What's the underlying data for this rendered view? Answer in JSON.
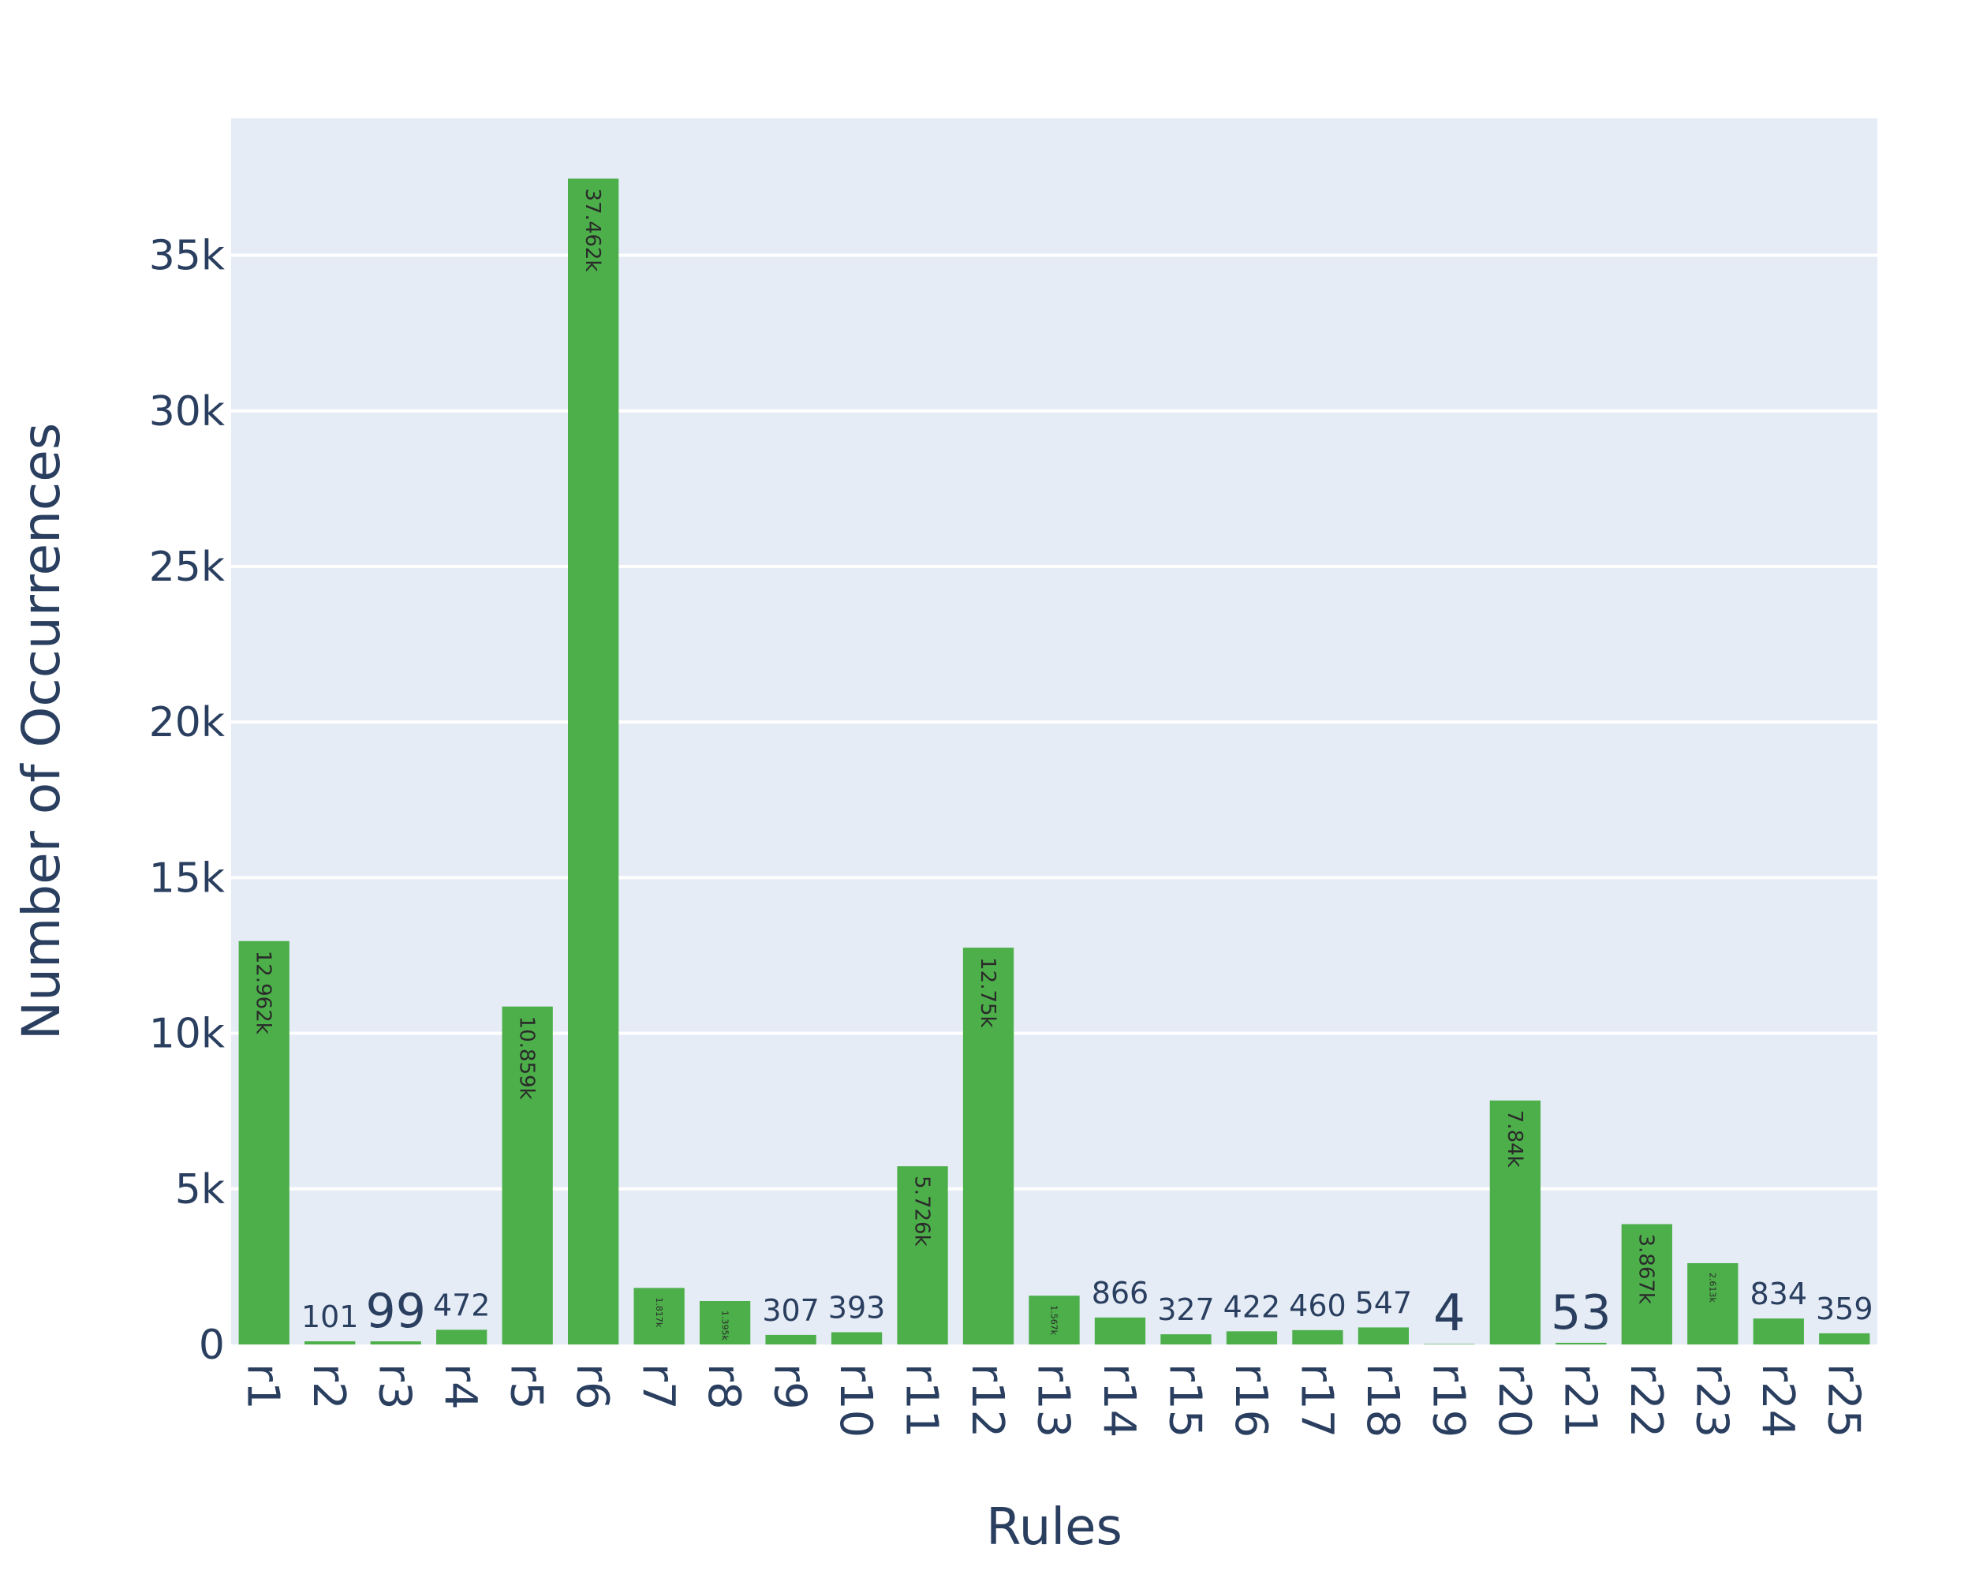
{
  "chart_data": {
    "type": "bar",
    "title": "",
    "xlabel": "Rules",
    "ylabel": "Number of Occurrences",
    "ylim": [
      0,
      39400
    ],
    "yticks": [
      0,
      5000,
      10000,
      15000,
      20000,
      25000,
      30000,
      35000
    ],
    "ytick_labels": [
      "0",
      "5k",
      "10k",
      "15k",
      "20k",
      "25k",
      "30k",
      "35k"
    ],
    "grid": true,
    "legend": "none",
    "categories": [
      "r1",
      "r2",
      "r3",
      "r4",
      "r5",
      "r6",
      "r7",
      "r8",
      "r9",
      "r10",
      "r11",
      "r12",
      "r13",
      "r14",
      "r15",
      "r16",
      "r17",
      "r18",
      "r19",
      "r20",
      "r21",
      "r22",
      "r23",
      "r24",
      "r25"
    ],
    "values": [
      12962,
      101,
      99,
      472,
      10859,
      37462,
      1817,
      1395,
      307,
      393,
      5726,
      12750,
      1567,
      866,
      327,
      422,
      460,
      547,
      4,
      7840,
      53,
      3867,
      2613,
      834,
      359
    ],
    "labels": [
      "12.962k",
      "101",
      "99",
      "472",
      "10.859k",
      "37.462k",
      "1.817k",
      "1.395k",
      "307",
      "393",
      "5.726k",
      "12.75k",
      "1.567k",
      "866",
      "327",
      "422",
      "460",
      "547",
      "4",
      "7.84k",
      "53",
      "3.867k",
      "2.613k",
      "834",
      "359"
    ],
    "colors": {
      "bar": "#4caf4a",
      "plot_background": "#e5ecf6",
      "grid": "#ffffff",
      "text": "#2a3f5f",
      "inside_label": "#2a2a2a"
    }
  }
}
